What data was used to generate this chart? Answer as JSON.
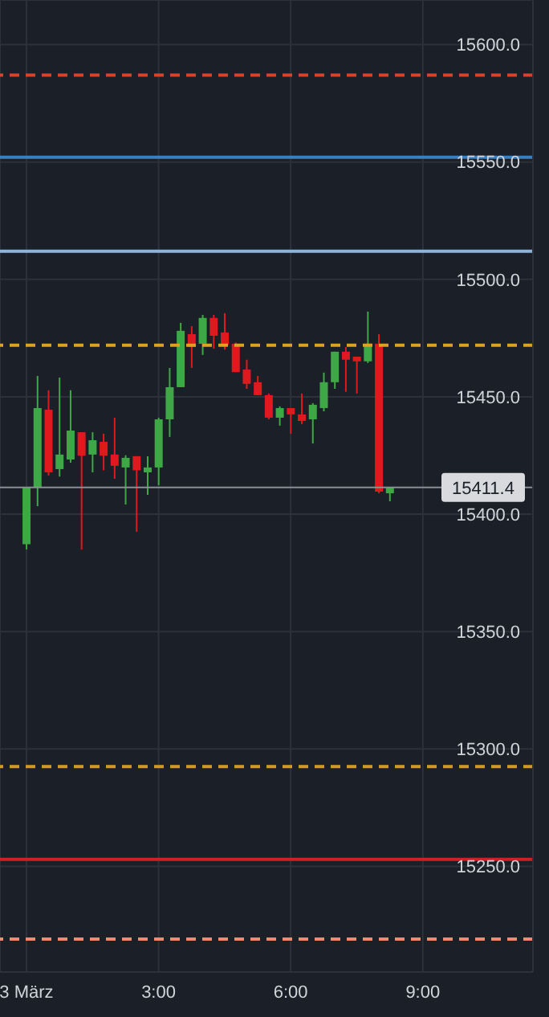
{
  "chart_data": {
    "type": "candlestick",
    "x": [
      "--03-03T00:00",
      "--03-03T00:15",
      "--03-03T00:30",
      "--03-03T00:45",
      "--03-03T01:00",
      "--03-03T01:15",
      "--03-03T01:30",
      "--03-03T01:45",
      "--03-03T02:00",
      "--03-03T02:15",
      "--03-03T02:30",
      "--03-03T02:45",
      "--03-03T03:00",
      "--03-03T03:15",
      "--03-03T03:30",
      "--03-03T03:45",
      "--03-03T04:00",
      "--03-03T04:15",
      "--03-03T04:30",
      "--03-03T04:45",
      "--03-03T05:00",
      "--03-03T05:15",
      "--03-03T05:30",
      "--03-03T05:45",
      "--03-03T06:00",
      "--03-03T06:15",
      "--03-03T06:30",
      "--03-03T06:45",
      "--03-03T07:00",
      "--03-03T07:15",
      "--03-03T07:30",
      "--03-03T07:45",
      "--03-03T08:00",
      "--03-03T08:15"
    ],
    "ohlc": [
      [
        15387.2,
        15411.4,
        15385,
        15411.4
      ],
      [
        15411.4,
        15458.9,
        15403.4,
        15445.2
      ],
      [
        15444.5,
        15452.8,
        15416.4,
        15417.8
      ],
      [
        15419.2,
        15458.2,
        15416,
        15425.4
      ],
      [
        15423.3,
        15452.8,
        15421.9,
        15435.6
      ],
      [
        15434.9,
        15434.9,
        15384.9,
        15424.9
      ],
      [
        15425.4,
        15434.9,
        15417.8,
        15431.5
      ],
      [
        15430.8,
        15434.3,
        15418.7,
        15424.9
      ],
      [
        15425.4,
        15441.1,
        15415.1,
        15420.6
      ],
      [
        15419.9,
        15425.1,
        15404.1,
        15424
      ],
      [
        15424.7,
        15424.7,
        15392.5,
        15418.7
      ],
      [
        15417.8,
        15424.7,
        15408.2,
        15419.9
      ],
      [
        15419.9,
        15441.1,
        15412.3,
        15440.4
      ],
      [
        15440.4,
        15462.3,
        15432.9,
        15454.1
      ],
      [
        15454.1,
        15481.5,
        15454.1,
        15478.1
      ],
      [
        15476.7,
        15480.1,
        15462.3,
        15471.2
      ],
      [
        15472.6,
        15484.9,
        15467.8,
        15483.6
      ],
      [
        15483.6,
        15484.9,
        15470.5,
        15476
      ],
      [
        15477.4,
        15485.6,
        15470.1,
        15472.2
      ],
      [
        15472.6,
        15473.1,
        15460.5,
        15460.5
      ],
      [
        15461.6,
        15465.8,
        15453.4,
        15455.5
      ],
      [
        15456.2,
        15458.9,
        15450.7,
        15450.7
      ],
      [
        15450.7,
        15451.4,
        15440.4,
        15441.1
      ],
      [
        15441.1,
        15445.9,
        15437.7,
        15445.2
      ],
      [
        15445.2,
        15445.2,
        15434.3,
        15442.5
      ],
      [
        15442.5,
        15451.4,
        15438.4,
        15439.7
      ],
      [
        15440.4,
        15447.3,
        15430.1,
        15446.6
      ],
      [
        15445.2,
        15460.3,
        15443.8,
        15456.2
      ],
      [
        15456.2,
        15469.2,
        15453.4,
        15469.2
      ],
      [
        15469.2,
        15471.2,
        15452.1,
        15465.8
      ],
      [
        15467.1,
        15467.1,
        15451.4,
        15465.1
      ],
      [
        15465.1,
        15486.3,
        15464.4,
        15472.6
      ],
      [
        15472.6,
        15476.7,
        15408.9,
        15409.6
      ],
      [
        15408.9,
        15411.6,
        15405.5,
        15411.4
      ]
    ],
    "colors": [
      "#3fa846",
      "#3fa846",
      "#e0191f",
      "#3fa846",
      "#3fa846",
      "#e0191f",
      "#3fa846",
      "#e0191f",
      "#e0191f",
      "#3fa846",
      "#e0191f",
      "#3fa846",
      "#3fa846",
      "#3fa846",
      "#3fa846",
      "#e0191f",
      "#3fa846",
      "#e0191f",
      "#e0191f",
      "#e0191f",
      "#e0191f",
      "#e0191f",
      "#e0191f",
      "#3fa846",
      "#e0191f",
      "#e0191f",
      "#3fa846",
      "#3fa846",
      "#3fa846",
      "#e0191f",
      "#e0191f",
      "#3fa846",
      "#e0191f",
      "#3fa846"
    ],
    "xlim": [
      "--03-02T23:24",
      "--03-03T11:30"
    ],
    "xticks": [
      {
        "value": "--03-03T00:00",
        "label": "3 März"
      },
      {
        "value": "--03-03T03:00",
        "label": "3:00"
      },
      {
        "value": "--03-03T06:00",
        "label": "6:00"
      },
      {
        "value": "--03-03T09:00",
        "label": "9:00"
      }
    ],
    "ylim": [
      15205,
      15619
    ],
    "yticks": [
      {
        "value": 15250,
        "label": "15250.0"
      },
      {
        "value": 15300,
        "label": "15300.0"
      },
      {
        "value": 15350,
        "label": "15350.0"
      },
      {
        "value": 15400,
        "label": "15400.0"
      },
      {
        "value": 15450,
        "label": "15450.0"
      },
      {
        "value": 15500,
        "label": "15500.0"
      },
      {
        "value": 15550,
        "label": "15550.0"
      },
      {
        "value": 15600,
        "label": "15600.0"
      }
    ],
    "grid": true,
    "ref_lines": [
      {
        "axis": "y",
        "value": 15587,
        "color": "#d9432b",
        "line_style": "dashed"
      },
      {
        "axis": "y",
        "value": 15552,
        "color": "#3a7fc0",
        "line_style": "solid"
      },
      {
        "axis": "y",
        "value": 15512,
        "color": "#8fb4dc",
        "line_style": "solid"
      },
      {
        "axis": "y",
        "value": 15472,
        "color": "#e0a020",
        "line_style": "dashed"
      },
      {
        "axis": "y",
        "value": 15411.4,
        "color": "#8a8f96",
        "line_style": "solid",
        "label": "15411.4"
      },
      {
        "axis": "y",
        "value": 15292.5,
        "color": "#d39a22",
        "line_style": "dashed"
      },
      {
        "axis": "y",
        "value": 15253,
        "color": "#cc2222",
        "line_style": "solid"
      },
      {
        "axis": "y",
        "value": 15219,
        "color": "#f08a70",
        "line_style": "dashed"
      }
    ]
  }
}
